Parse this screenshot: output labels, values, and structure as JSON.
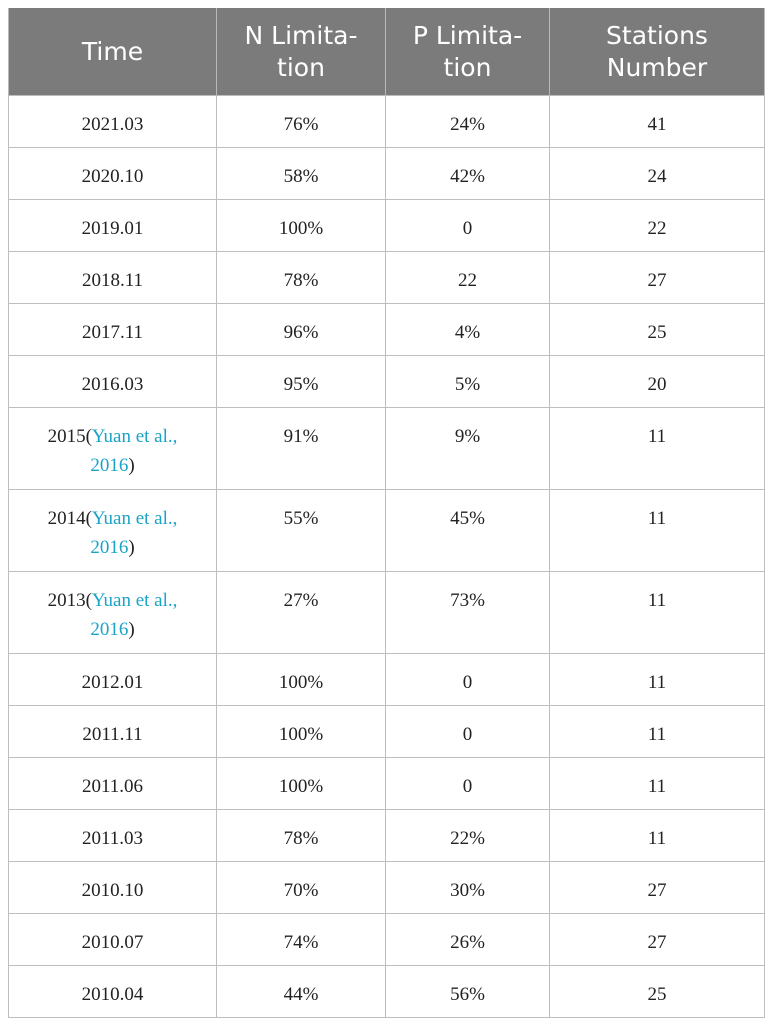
{
  "table": {
    "headers": [
      [
        "Time"
      ],
      [
        "N Limita-",
        "tion"
      ],
      [
        "P Limita-",
        "tion"
      ],
      [
        "Stations",
        "Number"
      ]
    ],
    "rows": [
      {
        "time": "2021.03",
        "n": "76%",
        "p": "24%",
        "stations": "41"
      },
      {
        "time": "2020.10",
        "n": "58%",
        "p": "42%",
        "stations": "24"
      },
      {
        "time": "2019.01",
        "n": "100%",
        "p": "0",
        "stations": "22"
      },
      {
        "time": "2018.11",
        "n": "78%",
        "p": "22",
        "stations": "27"
      },
      {
        "time": "2017.11",
        "n": "96%",
        "p": "4%",
        "stations": "25"
      },
      {
        "time": "2016.03",
        "n": "95%",
        "p": "5%",
        "stations": "20"
      },
      {
        "time": "2015(",
        "ref1": "Yuan et al.,",
        "ref2": "2016",
        "tail": ")",
        "n": "91%",
        "p": "9%",
        "stations": "11"
      },
      {
        "time": "2014(",
        "ref1": "Yuan et al.,",
        "ref2": "2016",
        "tail": ")",
        "n": "55%",
        "p": "45%",
        "stations": "11"
      },
      {
        "time": "2013(",
        "ref1": "Yuan et al.,",
        "ref2": "2016",
        "tail": ")",
        "n": "27%",
        "p": "73%",
        "stations": "11"
      },
      {
        "time": "2012.01",
        "n": "100%",
        "p": "0",
        "stations": "11"
      },
      {
        "time": "2011.11",
        "n": "100%",
        "p": "0",
        "stations": "11"
      },
      {
        "time": "2011.06",
        "n": "100%",
        "p": "0",
        "stations": "11"
      },
      {
        "time": "2011.03",
        "n": "78%",
        "p": "22%",
        "stations": "11"
      },
      {
        "time": "2010.10",
        "n": "70%",
        "p": "30%",
        "stations": "27"
      },
      {
        "time": "2010.07",
        "n": "74%",
        "p": "26%",
        "stations": "27"
      },
      {
        "time": "2010.04",
        "n": "44%",
        "p": "56%",
        "stations": "25"
      }
    ]
  },
  "colors": {
    "header_bg": "#7b7b7b",
    "header_text": "#ffffff",
    "reference_link": "#1aa3c6",
    "grid": "#bdbdbd"
  }
}
